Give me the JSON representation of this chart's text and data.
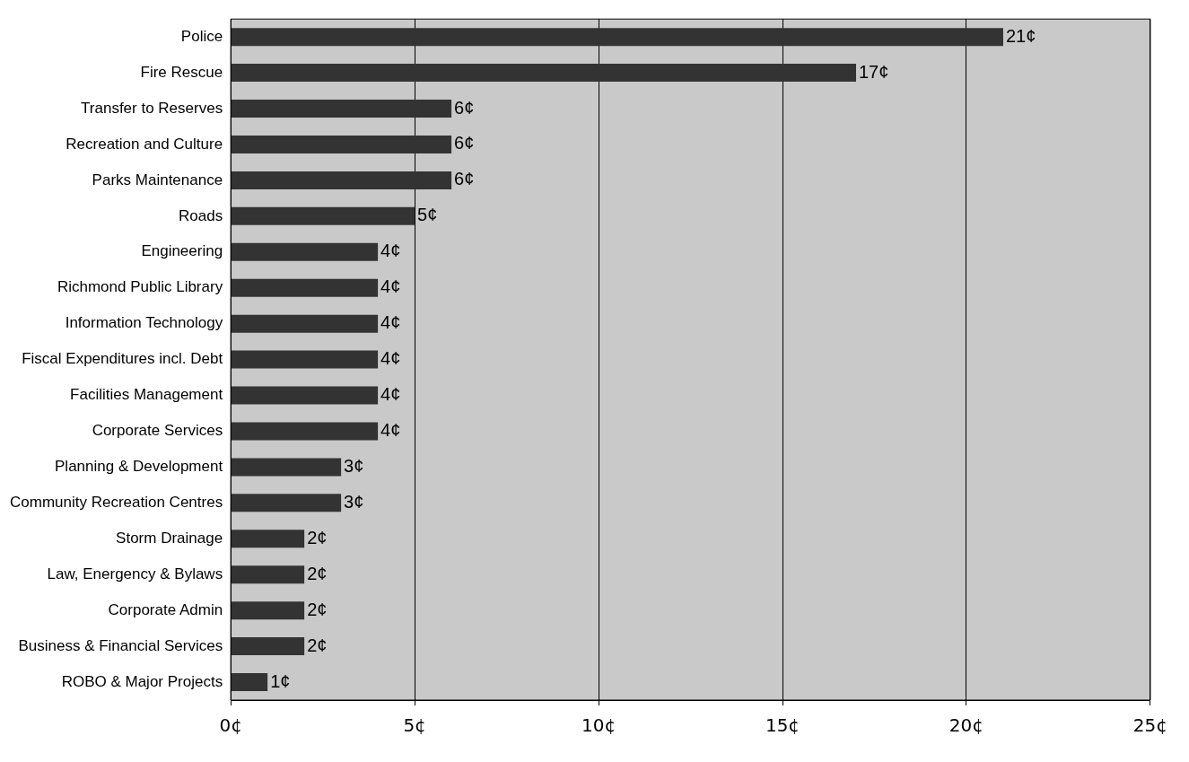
{
  "chart_data": {
    "type": "bar",
    "orientation": "horizontal",
    "categories": [
      "Police",
      "Fire Rescue",
      "Transfer to Reserves",
      "Recreation and Culture",
      "Parks Maintenance",
      "Roads",
      "Engineering",
      "Richmond Public Library",
      "Information Technology",
      "Fiscal Expenditures incl. Debt",
      "Facilities Management",
      "Corporate Services",
      "Planning & Development",
      "Community Recreation Centres",
      "Storm Drainage",
      "Law, Energency & Bylaws",
      "Corporate Admin",
      "Business & Financial Services",
      "ROBO & Major Projects"
    ],
    "values": [
      21,
      17,
      6,
      6,
      6,
      5,
      4,
      4,
      4,
      4,
      4,
      4,
      3,
      3,
      2,
      2,
      2,
      2,
      1
    ],
    "value_labels": [
      "21¢",
      "17¢",
      "6¢",
      "6¢",
      "6¢",
      "5¢",
      "4¢",
      "4¢",
      "4¢",
      "4¢",
      "4¢",
      "4¢",
      "3¢",
      "3¢",
      "2¢",
      "2¢",
      "2¢",
      "2¢",
      "1¢"
    ],
    "color": "#333333",
    "xlim": [
      0,
      25
    ],
    "xticks": [
      {
        "value": 0,
        "label": "0¢"
      },
      {
        "value": 5,
        "label": "5¢"
      },
      {
        "value": 10,
        "label": "10¢"
      },
      {
        "value": 15,
        "label": "15¢"
      },
      {
        "value": 20,
        "label": "20¢"
      },
      {
        "value": 25,
        "label": "25¢"
      }
    ],
    "grid": "x"
  }
}
